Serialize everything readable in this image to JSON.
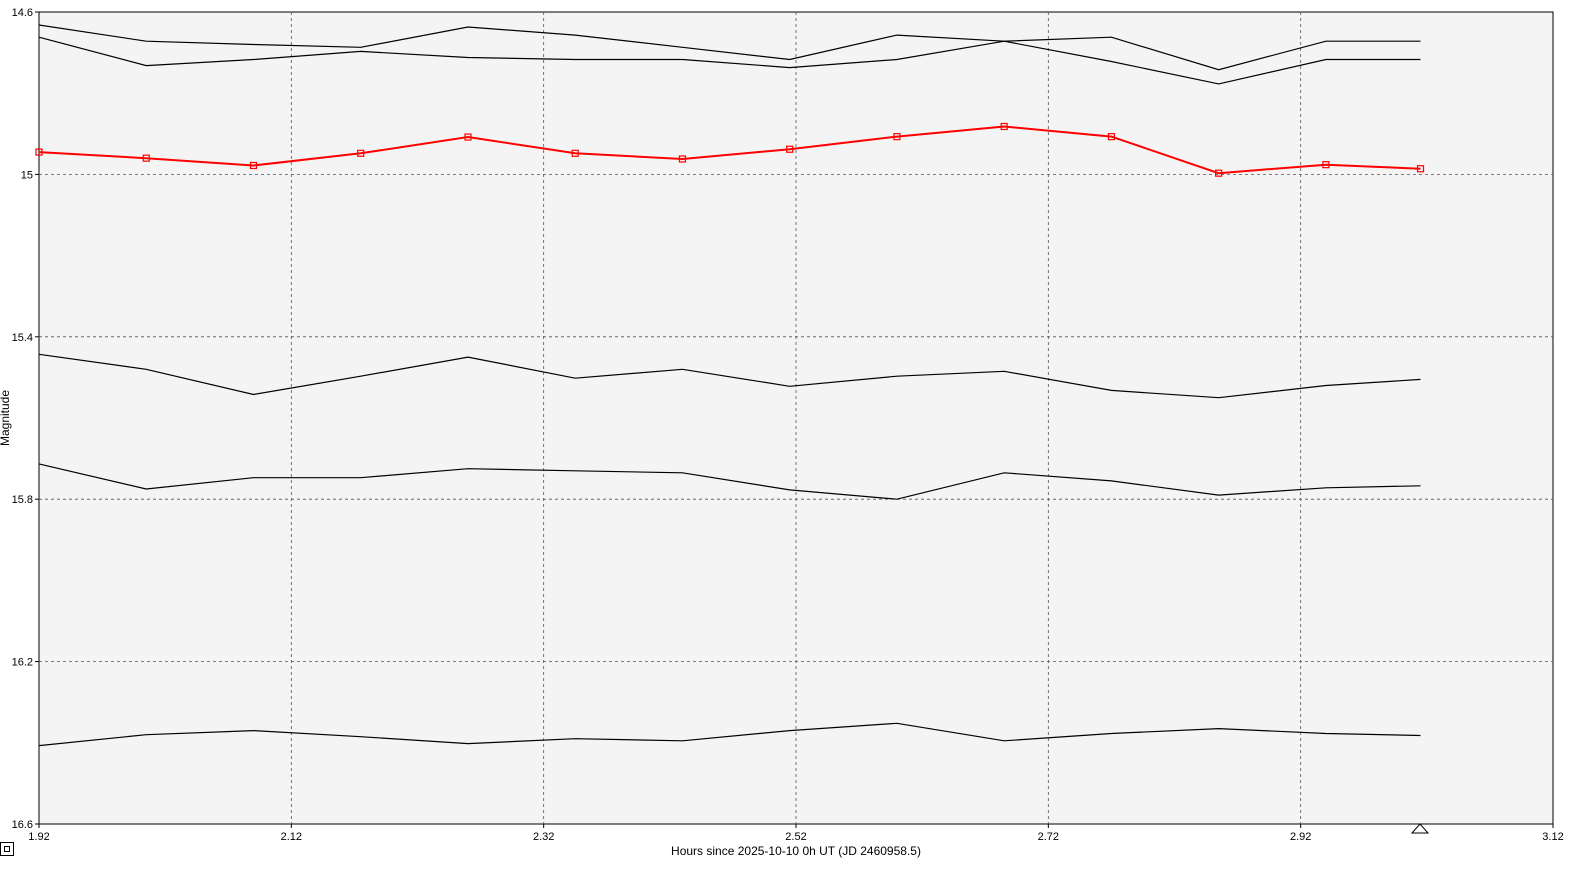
{
  "chart_data": {
    "type": "line",
    "xlabel": "Hours since 2025-10-10 0h UT (JD 2460958.5)",
    "ylabel": "Magnitude",
    "xlim": [
      1.92,
      3.12
    ],
    "ylim": [
      14.6,
      16.6
    ],
    "y_inverted": true,
    "grid": true,
    "x_ticks": [
      "1.92",
      "2.12",
      "2.32",
      "2.52",
      "2.72",
      "2.92",
      "3.12"
    ],
    "y_ticks": [
      "14.6",
      "15",
      "15.4",
      "15.8",
      "16.2",
      "16.6"
    ],
    "x": [
      1.92,
      2.005,
      2.09,
      2.175,
      2.26,
      2.345,
      2.43,
      2.515,
      2.6,
      2.685,
      2.77,
      2.855,
      2.94,
      3.015
    ],
    "series": [
      {
        "color": "#ff0000",
        "marker": "square",
        "highlight": true,
        "values": [
          14.945,
          14.96,
          14.978,
          14.948,
          14.908,
          14.948,
          14.962,
          14.938,
          14.907,
          14.882,
          14.907,
          14.997,
          14.976,
          14.986
        ]
      },
      {
        "color": "#000000",
        "values": [
          14.632,
          14.672,
          14.68,
          14.687,
          14.637,
          14.657,
          14.687,
          14.717,
          14.657,
          14.672,
          14.662,
          14.742,
          14.672,
          14.672
        ]
      },
      {
        "color": "#000000",
        "values": [
          14.662,
          14.732,
          14.717,
          14.697,
          14.712,
          14.717,
          14.717,
          14.737,
          14.717,
          14.672,
          14.722,
          14.777,
          14.717,
          14.717
        ]
      },
      {
        "color": "#000000",
        "values": [
          15.443,
          15.48,
          15.542,
          15.497,
          15.45,
          15.502,
          15.48,
          15.522,
          15.497,
          15.485,
          15.532,
          15.55,
          15.52,
          15.505
        ]
      },
      {
        "color": "#000000",
        "values": [
          15.713,
          15.775,
          15.747,
          15.747,
          15.725,
          15.73,
          15.735,
          15.777,
          15.8,
          15.735,
          15.755,
          15.79,
          15.772,
          15.767
        ]
      },
      {
        "color": "#000000",
        "values": [
          16.407,
          16.38,
          16.37,
          16.385,
          16.402,
          16.39,
          16.395,
          16.37,
          16.352,
          16.395,
          16.377,
          16.365,
          16.377,
          16.382
        ]
      }
    ]
  }
}
